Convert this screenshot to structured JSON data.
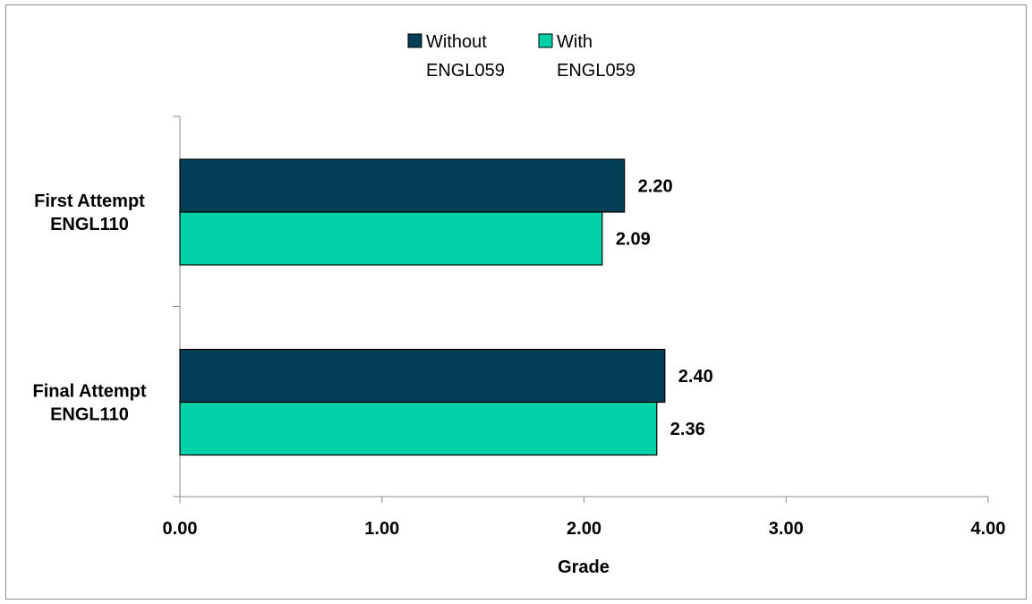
{
  "chart_data": {
    "type": "bar",
    "orientation": "horizontal",
    "categories": [
      [
        "First Attempt",
        "ENGL110"
      ],
      [
        "Final Attempt",
        "ENGL110"
      ]
    ],
    "series": [
      {
        "name": [
          "Without",
          "ENGL059"
        ],
        "values": [
          2.2,
          2.4
        ],
        "labels": [
          "2.20",
          "2.40"
        ],
        "color": "#013f57"
      },
      {
        "name": [
          "With",
          "ENGL059"
        ],
        "values": [
          2.09,
          2.36
        ],
        "labels": [
          "2.09",
          "2.36"
        ],
        "color": "#00d1a8"
      }
    ],
    "xlabel": "Grade",
    "xlim": [
      0,
      4
    ],
    "xticks": [
      0,
      1,
      2,
      3,
      4
    ],
    "xtick_labels": [
      "0.00",
      "1.00",
      "2.00",
      "3.00",
      "4.00"
    ],
    "grid": false,
    "legend_position": "top"
  }
}
